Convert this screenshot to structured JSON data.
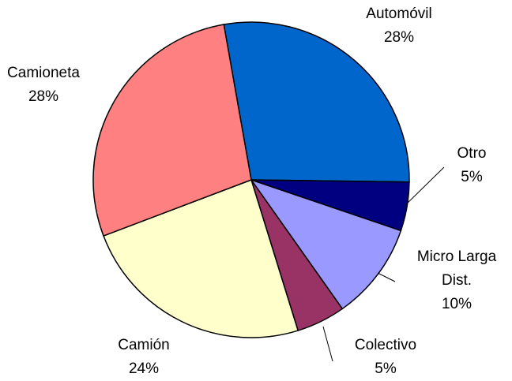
{
  "chart_data": {
    "type": "pie",
    "categories": [
      "Automóvil",
      "Otro",
      "Micro Larga Dist.",
      "Colectivo",
      "Camión",
      "Camioneta"
    ],
    "values": [
      28,
      5,
      10,
      5,
      24,
      28
    ],
    "value_labels": [
      "28%",
      "5%",
      "10%",
      "5%",
      "24%",
      "28%"
    ],
    "colors": [
      "#0066cc",
      "#000080",
      "#9999ff",
      "#993366",
      "#ffffcc",
      "#ff8080"
    ]
  }
}
